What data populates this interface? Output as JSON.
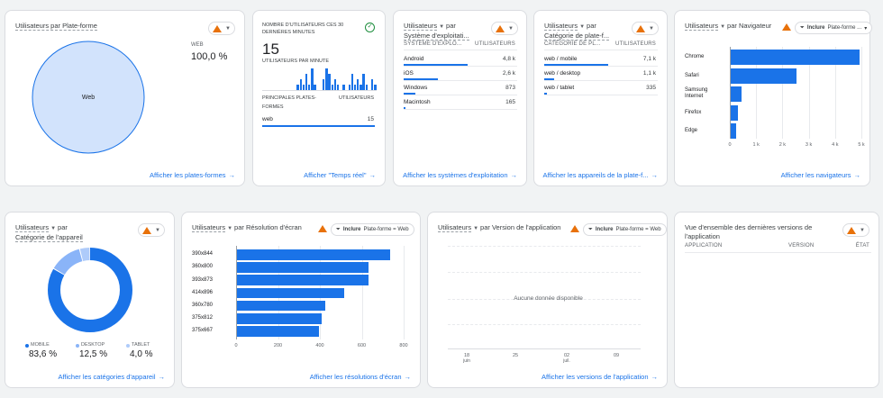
{
  "colors": {
    "accent": "#1a73e8",
    "pie_fill": "#d2e3fc",
    "warn": "#e8710a",
    "donut_light": "#8ab4f8",
    "donut_lighter": "#aecbfa"
  },
  "card1": {
    "title": "Utilisateurs par Plate-forme",
    "legend_label": "WEB",
    "legend_value": "100,0 %",
    "pie_label": "Web",
    "link": "Afficher les plates-formes"
  },
  "card2": {
    "title": "NOMBRE D'UTILISATEURS CES 30 DERNIÈRES MINUTES",
    "count": "15",
    "subtitle": "UTILISATEURS PAR MINUTE",
    "col1": "PRINCIPALES PLATES-FORMES",
    "col2": "UTILISATEURS",
    "rows": [
      {
        "label": "web",
        "value": "15"
      }
    ],
    "link": "Afficher \"Temps réel\"",
    "sparkline": [
      0,
      0,
      0,
      0,
      0,
      0,
      0,
      0,
      0,
      0,
      0,
      0,
      1,
      2,
      1,
      3,
      1,
      4,
      1,
      0,
      0,
      2,
      4,
      3,
      1,
      2,
      1,
      0,
      1,
      0,
      1,
      3,
      1,
      2,
      1,
      3,
      1,
      0,
      2,
      1
    ]
  },
  "card3": {
    "title_a": "Utilisateurs",
    "title_b": "par",
    "title_c": "Système d'exploitati...",
    "col1": "SYSTÈME D'EXPLO...",
    "col2": "UTILISATEURS",
    "rows": [
      {
        "label": "Android",
        "value": "4,8 k",
        "frac": 1.0
      },
      {
        "label": "iOS",
        "value": "2,6 k",
        "frac": 0.54
      },
      {
        "label": "Windows",
        "value": "873",
        "frac": 0.18
      },
      {
        "label": "Macintosh",
        "value": "165",
        "frac": 0.03
      }
    ],
    "link": "Afficher les systèmes d'exploitation"
  },
  "card4": {
    "title_a": "Utilisateurs",
    "title_b": "par",
    "title_c": "Catégorie de plate-f...",
    "col1": "CATÉGORIE DE PL...",
    "col2": "UTILISATEURS",
    "rows": [
      {
        "label": "web / mobile",
        "value": "7,1 k",
        "frac": 1.0
      },
      {
        "label": "web / desktop",
        "value": "1,1 k",
        "frac": 0.155
      },
      {
        "label": "web / tablet",
        "value": "335",
        "frac": 0.047
      }
    ],
    "link": "Afficher les appareils de la plate-f..."
  },
  "card5": {
    "title_a": "Utilisateurs",
    "title_b": "par Navigateur",
    "chip_b": "Inclure",
    "chip_t": "Plate-forme ...",
    "link": "Afficher les navigateurs",
    "categories": [
      "Chrome",
      "Safari",
      "Samsung Internet",
      "Firefox",
      "Edge"
    ],
    "values": [
      4900,
      2500,
      400,
      280,
      200
    ],
    "ticks": [
      "0",
      "1 k",
      "2 k",
      "3 k",
      "4 k",
      "5 k"
    ],
    "xmax": 5000
  },
  "card6": {
    "title_a": "Utilisateurs",
    "title_b": "par",
    "title_c": "Catégorie de l'appareil",
    "legend": [
      {
        "label": "MOBILE",
        "value": "83,6 %"
      },
      {
        "label": "DESKTOP",
        "value": "12,5 %"
      },
      {
        "label": "TABLET",
        "value": "4,0 %"
      }
    ],
    "values": [
      83.6,
      12.5,
      4.0
    ],
    "link": "Afficher les catégories d'appareil"
  },
  "card7": {
    "title_a": "Utilisateurs",
    "title_b": "par Résolution d'écran",
    "chip_b": "Inclure",
    "chip_t": "Plate-forme = Web",
    "link": "Afficher les résolutions d'écran",
    "categories": [
      "390x844",
      "360x800",
      "393x873",
      "414x896",
      "360x780",
      "375x812",
      "375x667"
    ],
    "values": [
      730,
      630,
      630,
      510,
      420,
      405,
      390
    ],
    "ticks": [
      "0",
      "200",
      "400",
      "600",
      "800"
    ],
    "xmax": 800
  },
  "card8": {
    "title_a": "Utilisateurs",
    "title_b": "par Version de l'application",
    "chip_b": "Inclure",
    "chip_t": "Plate-forme = Web",
    "empty": "Aucune donnée disponible",
    "xticks": [
      {
        "d": "18",
        "m": "juin"
      },
      {
        "d": "25",
        "m": ""
      },
      {
        "d": "02",
        "m": "juil."
      },
      {
        "d": "09",
        "m": ""
      }
    ],
    "link": "Afficher les versions de l'application"
  },
  "card9": {
    "title": "Vue d'ensemble des dernières versions de l'application",
    "col1": "APPLICATION",
    "col2": "VERSION",
    "col3": "ÉTAT"
  }
}
